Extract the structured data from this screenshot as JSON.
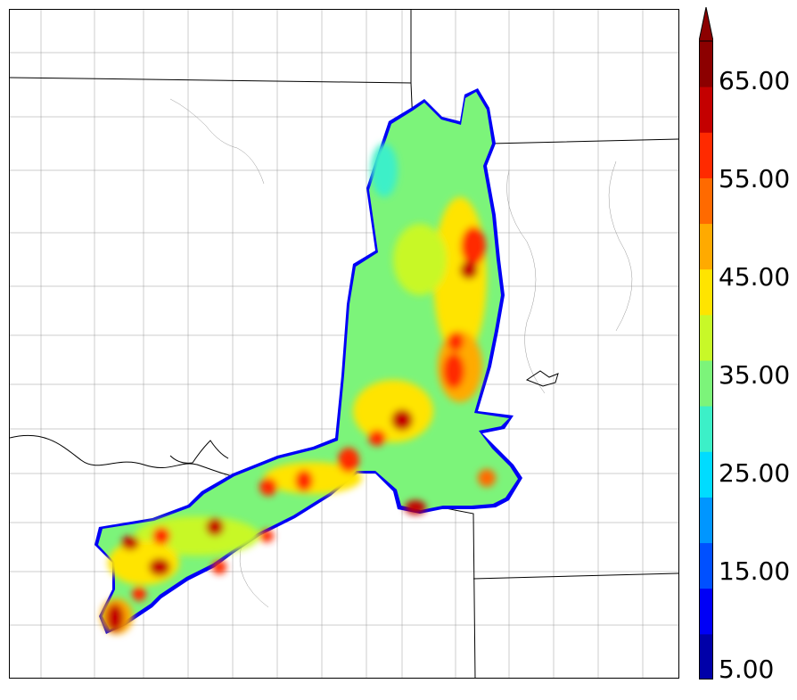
{
  "colorbar": {
    "min": 5,
    "max": 70,
    "step": 5,
    "extend": "max",
    "tick_labels": [
      "5.00",
      "15.00",
      "25.00",
      "35.00",
      "45.00",
      "55.00",
      "65.00"
    ],
    "colors": [
      "#0000a8",
      "#0000f6",
      "#0050ff",
      "#0096ff",
      "#00dcff",
      "#3cf0c8",
      "#7cf47a",
      "#c8f828",
      "#ffe400",
      "#ffaa00",
      "#ff6a00",
      "#ff2a00",
      "#c40000",
      "#8c0000"
    ],
    "extend_color": "#8c0000"
  }
}
